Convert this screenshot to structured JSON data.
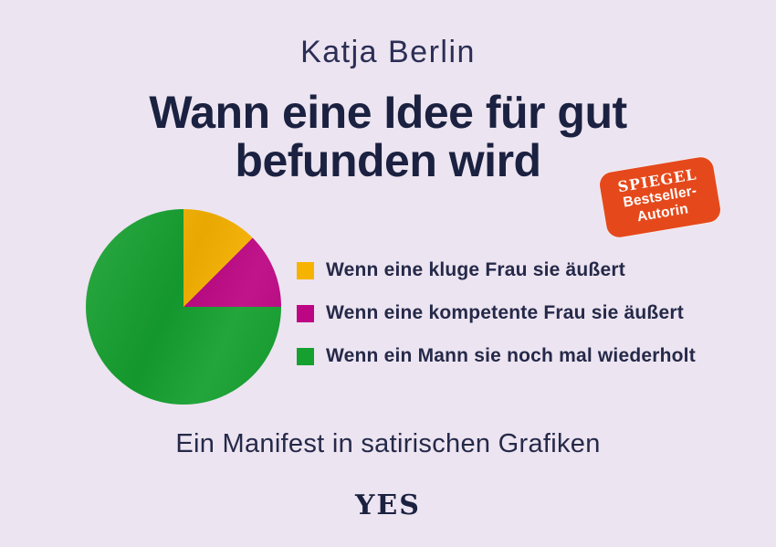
{
  "cover": {
    "background": "#ece4f0",
    "author": "Katja Berlin",
    "title_line1": "Wann eine Idee für gut",
    "title_line2": "befunden wird",
    "subtitle": "Ein Manifest in satirischen Grafiken",
    "publisher_logo": "YES"
  },
  "badge": {
    "line1": "SPIEGEL",
    "line2": "Bestseller-",
    "line3": "Autorin",
    "background": "#e5491b",
    "text_color": "#ffffff"
  },
  "chart_data": {
    "type": "pie",
    "title": "Wann eine Idee für gut befunden wird",
    "start_angle_deg": 0,
    "direction": "clockwise",
    "slices": [
      {
        "label": "Wenn eine kluge Frau sie äußert",
        "value_pct": 12.5,
        "color": "#f7b301"
      },
      {
        "label": "Wenn eine kompetente Frau sie äußert",
        "value_pct": 12.5,
        "color": "#bd0684"
      },
      {
        "label": "Wenn ein Mann sie noch mal wiederholt",
        "value_pct": 75,
        "color": "#15a02f"
      }
    ],
    "legend_position": "right-of-pie"
  }
}
